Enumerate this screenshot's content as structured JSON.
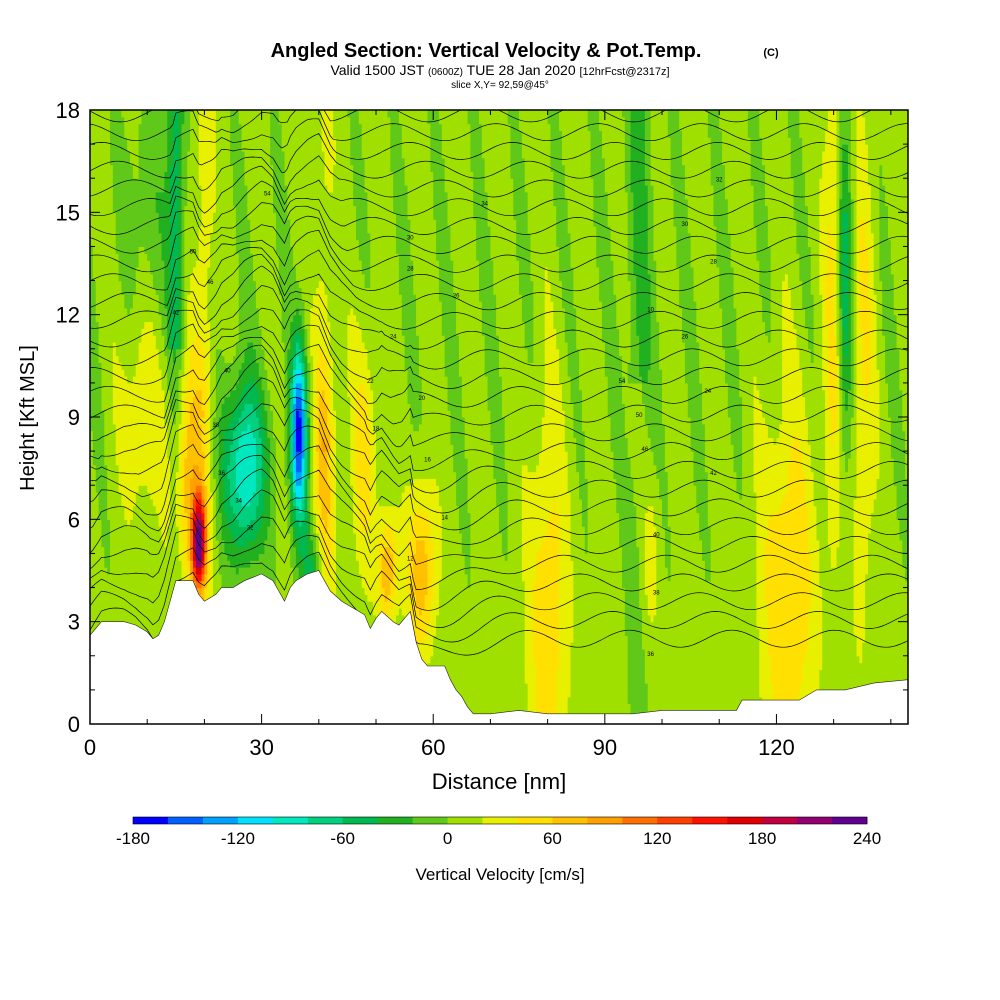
{
  "chart_data": {
    "type": "heatmap",
    "title": "Angled Section: Vertical Velocity & Pot.Temp.",
    "title_suffix": "(C)",
    "subtitle_valid": "Valid 1500 JST",
    "subtitle_zulu": "(0600Z)",
    "subtitle_date": "TUE 28 Jan 2020",
    "subtitle_fcst": "[12hrFcst@2317z]",
    "subtitle_slice": "slice X,Y= 92,59@45°",
    "xlabel": "Distance [nm]",
    "ylabel": "Height [Kft MSL]",
    "xlim": [
      0,
      143
    ],
    "ylim": [
      0,
      18
    ],
    "xticks": [
      0,
      30,
      60,
      90,
      120
    ],
    "yticks": [
      0,
      3,
      6,
      9,
      12,
      15,
      18
    ],
    "colorbar": {
      "label": "Vertical Velocity [cm/s]",
      "min": -180,
      "max": 240,
      "step": 20,
      "tick_values": [
        -180,
        -120,
        -60,
        0,
        60,
        120,
        180,
        240
      ],
      "colors": [
        "#0000ff",
        "#0060ff",
        "#00a0ff",
        "#00e0ff",
        "#00e8c0",
        "#00d080",
        "#00b850",
        "#20b020",
        "#60c818",
        "#a0e000",
        "#e8f000",
        "#ffe000",
        "#ffc000",
        "#ffa000",
        "#ff7000",
        "#ff4000",
        "#ff1000",
        "#e00000",
        "#c00040",
        "#900070",
        "#600090"
      ]
    },
    "terrain_kft": [
      [
        0,
        2.6
      ],
      [
        1,
        2.8
      ],
      [
        2,
        3.0
      ],
      [
        6,
        3.0
      ],
      [
        8,
        2.9
      ],
      [
        10,
        2.7
      ],
      [
        11,
        2.5
      ],
      [
        12,
        2.6
      ],
      [
        13,
        3.0
      ],
      [
        14,
        3.6
      ],
      [
        15,
        4.2
      ],
      [
        18,
        4.2
      ],
      [
        19,
        3.8
      ],
      [
        20,
        3.6
      ],
      [
        22,
        3.8
      ],
      [
        23,
        4.0
      ],
      [
        25,
        4.0
      ],
      [
        27,
        4.2
      ],
      [
        30,
        4.4
      ],
      [
        32,
        4.2
      ],
      [
        33,
        3.9
      ],
      [
        34,
        3.6
      ],
      [
        35,
        4.0
      ],
      [
        36,
        4.2
      ],
      [
        38,
        4.4
      ],
      [
        40,
        4.5
      ],
      [
        41,
        4.2
      ],
      [
        42,
        3.9
      ],
      [
        44,
        3.6
      ],
      [
        46,
        3.4
      ],
      [
        48,
        3.2
      ],
      [
        49,
        2.8
      ],
      [
        50,
        3.1
      ],
      [
        51,
        3.3
      ],
      [
        53,
        3.0
      ],
      [
        54,
        2.9
      ],
      [
        55,
        3.1
      ],
      [
        56,
        3.3
      ],
      [
        57,
        2.4
      ],
      [
        58,
        1.9
      ],
      [
        59,
        1.7
      ],
      [
        62,
        1.7
      ],
      [
        63,
        1.3
      ],
      [
        64,
        1.0
      ],
      [
        65,
        0.8
      ],
      [
        66,
        0.5
      ],
      [
        67,
        0.3
      ],
      [
        70,
        0.3
      ],
      [
        75,
        0.4
      ],
      [
        80,
        0.3
      ],
      [
        85,
        0.3
      ],
      [
        90,
        0.3
      ],
      [
        95,
        0.3
      ],
      [
        100,
        0.4
      ],
      [
        105,
        0.4
      ],
      [
        110,
        0.4
      ],
      [
        113,
        0.4
      ],
      [
        114,
        0.7
      ],
      [
        115,
        0.7
      ],
      [
        124,
        0.7
      ],
      [
        127,
        1.0
      ],
      [
        132,
        1.0
      ],
      [
        137,
        1.2
      ],
      [
        143,
        1.3
      ]
    ],
    "theta_contour_labels": [
      "54",
      "50",
      "46",
      "42",
      "40",
      "38",
      "36",
      "34",
      "32",
      "30",
      "28",
      "26",
      "24",
      "22",
      "20",
      "18",
      "16",
      "14",
      "12",
      "10"
    ],
    "wmax_cms": 200,
    "wmin_cms": -170
  }
}
